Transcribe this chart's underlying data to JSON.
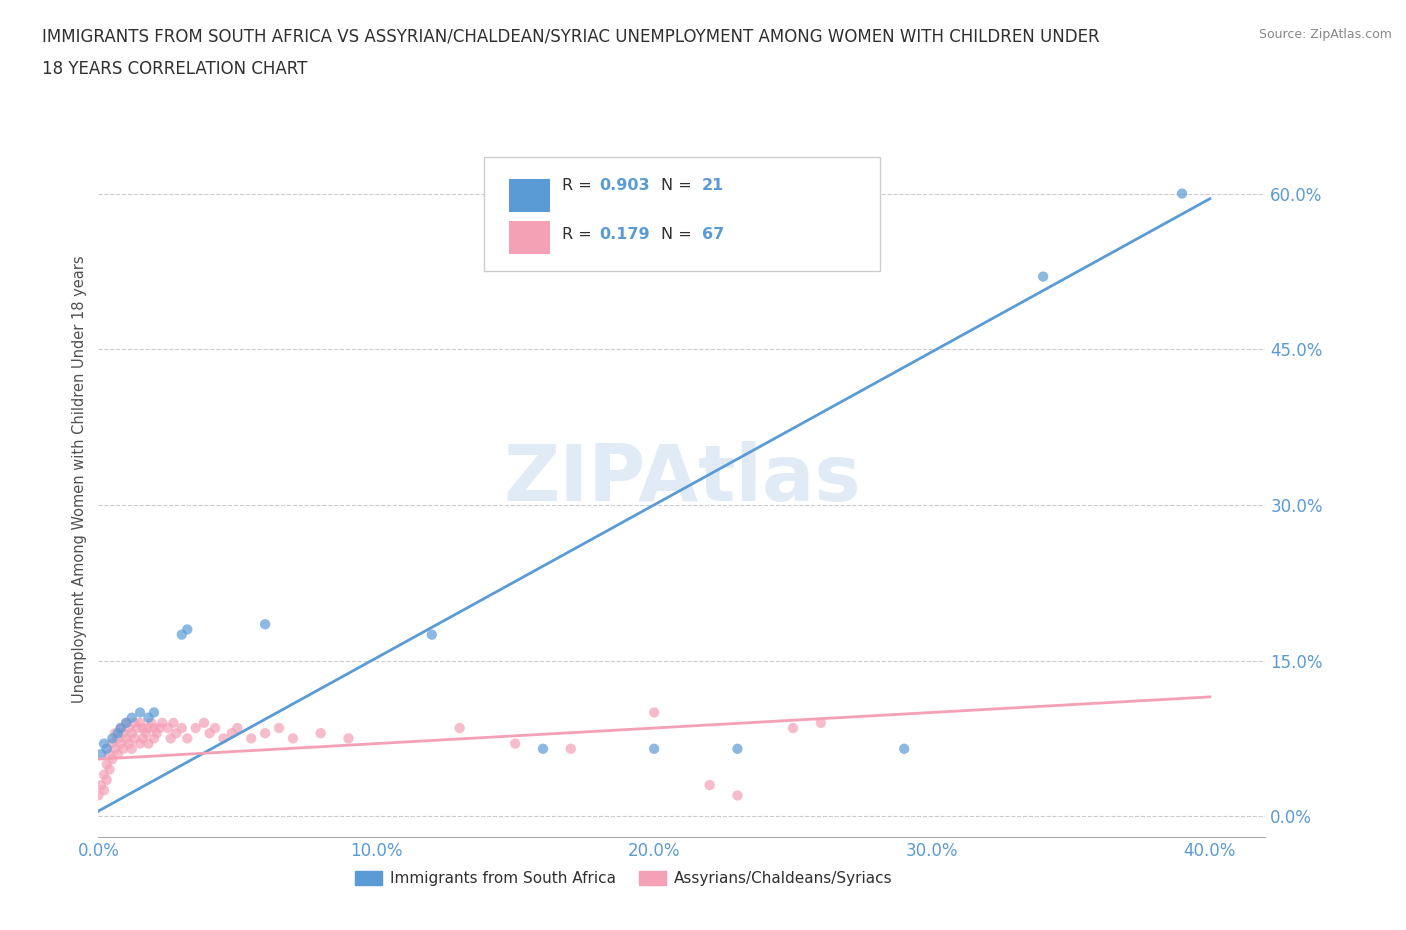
{
  "title_line1": "IMMIGRANTS FROM SOUTH AFRICA VS ASSYRIAN/CHALDEAN/SYRIAC UNEMPLOYMENT AMONG WOMEN WITH CHILDREN UNDER",
  "title_line2": "18 YEARS CORRELATION CHART",
  "source": "Source: ZipAtlas.com",
  "ylabel": "Unemployment Among Women with Children Under 18 years",
  "watermark": "ZIPAtlas",
  "xlim": [
    0.0,
    0.42
  ],
  "ylim": [
    -0.02,
    0.67
  ],
  "xticks": [
    0.0,
    0.1,
    0.2,
    0.3,
    0.4
  ],
  "yticks": [
    0.0,
    0.15,
    0.3,
    0.45,
    0.6
  ],
  "blue_color": "#5b9bd5",
  "pink_color": "#f4a0b5",
  "blue_R": 0.903,
  "blue_N": 21,
  "pink_R": 0.179,
  "pink_N": 67,
  "blue_scatter": [
    [
      0.001,
      0.06
    ],
    [
      0.002,
      0.07
    ],
    [
      0.003,
      0.065
    ],
    [
      0.005,
      0.075
    ],
    [
      0.007,
      0.08
    ],
    [
      0.008,
      0.085
    ],
    [
      0.01,
      0.09
    ],
    [
      0.012,
      0.095
    ],
    [
      0.015,
      0.1
    ],
    [
      0.018,
      0.095
    ],
    [
      0.02,
      0.1
    ],
    [
      0.03,
      0.175
    ],
    [
      0.032,
      0.18
    ],
    [
      0.06,
      0.185
    ],
    [
      0.12,
      0.175
    ],
    [
      0.16,
      0.065
    ],
    [
      0.2,
      0.065
    ],
    [
      0.23,
      0.065
    ],
    [
      0.29,
      0.065
    ],
    [
      0.34,
      0.52
    ],
    [
      0.39,
      0.6
    ]
  ],
  "pink_scatter": [
    [
      0.0,
      0.02
    ],
    [
      0.001,
      0.03
    ],
    [
      0.002,
      0.025
    ],
    [
      0.002,
      0.04
    ],
    [
      0.003,
      0.05
    ],
    [
      0.003,
      0.035
    ],
    [
      0.004,
      0.06
    ],
    [
      0.004,
      0.045
    ],
    [
      0.005,
      0.07
    ],
    [
      0.005,
      0.055
    ],
    [
      0.006,
      0.065
    ],
    [
      0.006,
      0.08
    ],
    [
      0.007,
      0.06
    ],
    [
      0.007,
      0.075
    ],
    [
      0.008,
      0.07
    ],
    [
      0.008,
      0.085
    ],
    [
      0.009,
      0.065
    ],
    [
      0.009,
      0.08
    ],
    [
      0.01,
      0.075
    ],
    [
      0.01,
      0.09
    ],
    [
      0.011,
      0.07
    ],
    [
      0.011,
      0.085
    ],
    [
      0.012,
      0.08
    ],
    [
      0.012,
      0.065
    ],
    [
      0.013,
      0.09
    ],
    [
      0.013,
      0.075
    ],
    [
      0.014,
      0.085
    ],
    [
      0.015,
      0.07
    ],
    [
      0.015,
      0.09
    ],
    [
      0.016,
      0.075
    ],
    [
      0.016,
      0.085
    ],
    [
      0.017,
      0.08
    ],
    [
      0.018,
      0.085
    ],
    [
      0.018,
      0.07
    ],
    [
      0.019,
      0.09
    ],
    [
      0.02,
      0.075
    ],
    [
      0.02,
      0.085
    ],
    [
      0.021,
      0.08
    ],
    [
      0.022,
      0.085
    ],
    [
      0.023,
      0.09
    ],
    [
      0.025,
      0.085
    ],
    [
      0.026,
      0.075
    ],
    [
      0.027,
      0.09
    ],
    [
      0.028,
      0.08
    ],
    [
      0.03,
      0.085
    ],
    [
      0.032,
      0.075
    ],
    [
      0.035,
      0.085
    ],
    [
      0.038,
      0.09
    ],
    [
      0.04,
      0.08
    ],
    [
      0.042,
      0.085
    ],
    [
      0.045,
      0.075
    ],
    [
      0.048,
      0.08
    ],
    [
      0.05,
      0.085
    ],
    [
      0.055,
      0.075
    ],
    [
      0.06,
      0.08
    ],
    [
      0.065,
      0.085
    ],
    [
      0.07,
      0.075
    ],
    [
      0.08,
      0.08
    ],
    [
      0.09,
      0.075
    ],
    [
      0.13,
      0.085
    ],
    [
      0.15,
      0.07
    ],
    [
      0.17,
      0.065
    ],
    [
      0.2,
      0.1
    ],
    [
      0.22,
      0.03
    ],
    [
      0.23,
      0.02
    ],
    [
      0.25,
      0.085
    ],
    [
      0.26,
      0.09
    ]
  ],
  "grid_color": "#cccccc",
  "background_color": "#ffffff",
  "title_color": "#303030",
  "axis_label_color": "#505050",
  "tick_color": "#5b9bd5"
}
